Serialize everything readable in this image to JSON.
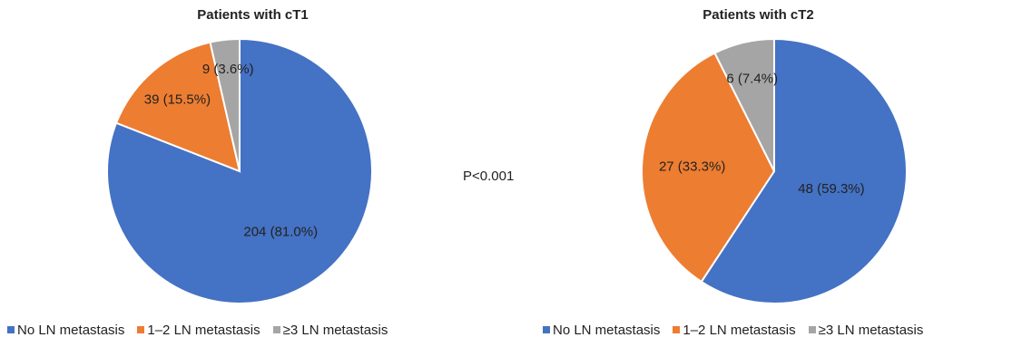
{
  "p_value": "P<0.001",
  "chart_data": [
    {
      "type": "pie",
      "title": "Patients with cT1",
      "categories": [
        "No LN metastasis",
        "1–2 LN metastasis",
        "≥3 LN metastasis"
      ],
      "values": [
        204,
        39,
        9
      ],
      "data_labels": [
        "204 (81.0%)",
        "39 (15.5%)",
        "9 (3.6%)"
      ],
      "colors": [
        "#4472C4",
        "#ED7D31",
        "#A5A5A5"
      ],
      "legend_position": "bottom"
    },
    {
      "type": "pie",
      "title": "Patients with cT2",
      "categories": [
        "No LN metastasis",
        "1–2 LN metastasis",
        "≥3 LN metastasis"
      ],
      "values": [
        48,
        27,
        6
      ],
      "data_labels": [
        "48 (59.3%)",
        "27 (33.3%)",
        "6 (7.4%)"
      ],
      "colors": [
        "#4472C4",
        "#ED7D31",
        "#A5A5A5"
      ],
      "legend_position": "bottom"
    }
  ]
}
